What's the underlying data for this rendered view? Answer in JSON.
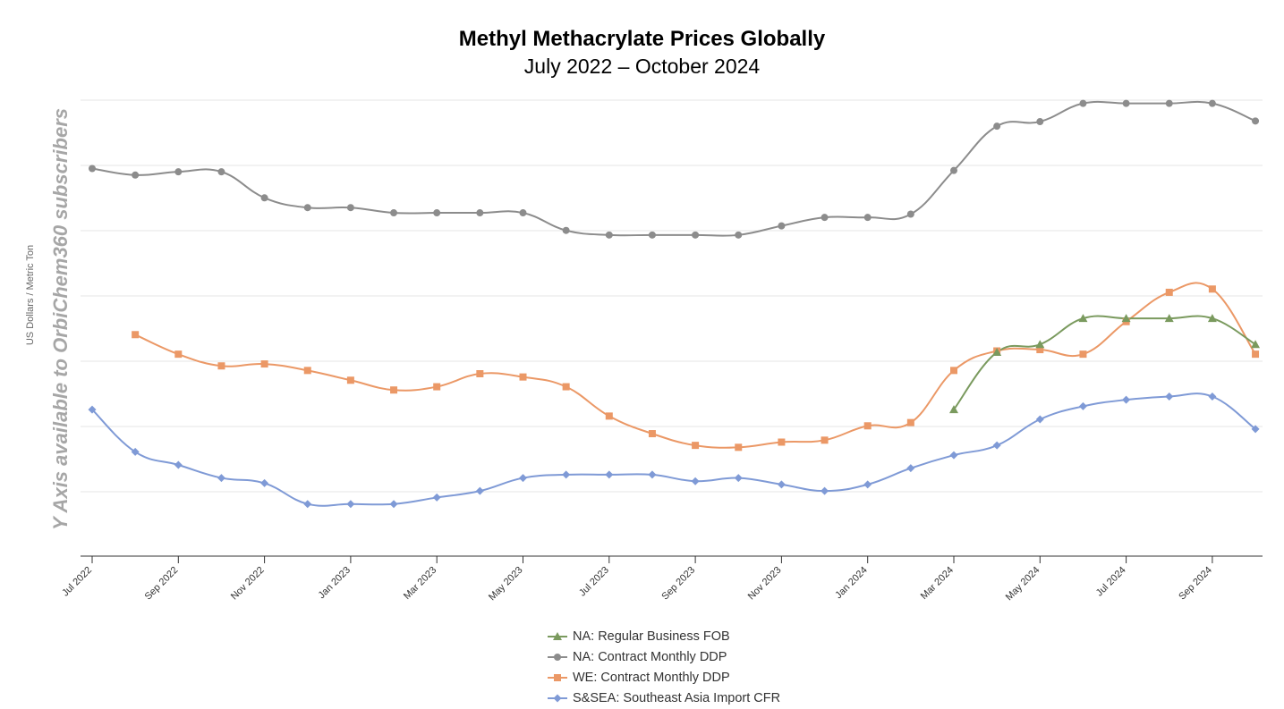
{
  "chart_data": {
    "type": "line",
    "title": "Methyl Methacrylate Prices Globally",
    "subtitle": "July 2022 – October 2024",
    "ylabel": "US Dollars / Metric Ton",
    "watermark": "Y Axis available to OrbiChem360 subscribers",
    "grid": true,
    "legend_position": "bottom-center",
    "y_ticks_printed": false,
    "x": [
      "Jul 2022",
      "Aug 2022",
      "Sep 2022",
      "Oct 2022",
      "Nov 2022",
      "Dec 2022",
      "Jan 2023",
      "Feb 2023",
      "Mar 2023",
      "Apr 2023",
      "May 2023",
      "Jun 2023",
      "Jul 2023",
      "Aug 2023",
      "Sep 2023",
      "Oct 2023",
      "Nov 2023",
      "Dec 2023",
      "Jan 2024",
      "Feb 2024",
      "Mar 2024",
      "Apr 2024",
      "May 2024",
      "Jun 2024",
      "Jul 2024",
      "Aug 2024",
      "Sep 2024",
      "Oct 2024"
    ],
    "x_tick_labels": [
      "Jul 2022",
      "Sep 2022",
      "Nov 2022",
      "Jan 2023",
      "Mar 2023",
      "May 2023",
      "Jul 2023",
      "Sep 2023",
      "Nov 2023",
      "Jan 2024",
      "Mar 2024",
      "May 2024",
      "Jul 2024",
      "Sep 2024"
    ],
    "series": [
      {
        "name": "NA: Regular Business FOB",
        "color": "#7a9a5e",
        "marker": "triangle",
        "values": [
          null,
          null,
          null,
          null,
          null,
          null,
          null,
          null,
          null,
          null,
          null,
          null,
          null,
          null,
          null,
          null,
          null,
          null,
          null,
          null,
          4.45,
          5.33,
          5.45,
          5.85,
          5.85,
          5.85,
          5.85,
          5.45
        ]
      },
      {
        "name": "NA: Contract Monthly DDP",
        "color": "#8c8c8c",
        "marker": "circle",
        "values": [
          8.15,
          8.05,
          8.1,
          8.1,
          7.7,
          7.55,
          7.55,
          7.47,
          7.47,
          7.47,
          7.47,
          7.2,
          7.13,
          7.13,
          7.13,
          7.13,
          7.27,
          7.4,
          7.4,
          7.45,
          8.12,
          8.8,
          8.87,
          9.15,
          9.15,
          9.15,
          9.15,
          8.88
        ]
      },
      {
        "name": "WE: Contract Monthly DDP",
        "color": "#eb9866",
        "marker": "square",
        "values": [
          null,
          5.6,
          5.3,
          5.12,
          5.15,
          5.05,
          4.9,
          4.75,
          4.8,
          5.0,
          4.95,
          4.8,
          4.35,
          4.08,
          3.9,
          3.87,
          3.95,
          3.98,
          4.2,
          4.25,
          5.05,
          5.35,
          5.37,
          5.3,
          5.8,
          6.25,
          6.3,
          5.3
        ]
      },
      {
        "name": "S&SEA: Southeast Asia Import CFR",
        "color": "#7f9ad6",
        "marker": "diamond",
        "values": [
          4.45,
          3.8,
          3.6,
          3.4,
          3.32,
          3.0,
          3.0,
          3.0,
          3.1,
          3.2,
          3.4,
          3.45,
          3.45,
          3.45,
          3.35,
          3.4,
          3.3,
          3.2,
          3.3,
          3.55,
          3.75,
          3.9,
          4.3,
          4.5,
          4.6,
          4.65,
          4.65,
          4.15
        ]
      }
    ]
  }
}
